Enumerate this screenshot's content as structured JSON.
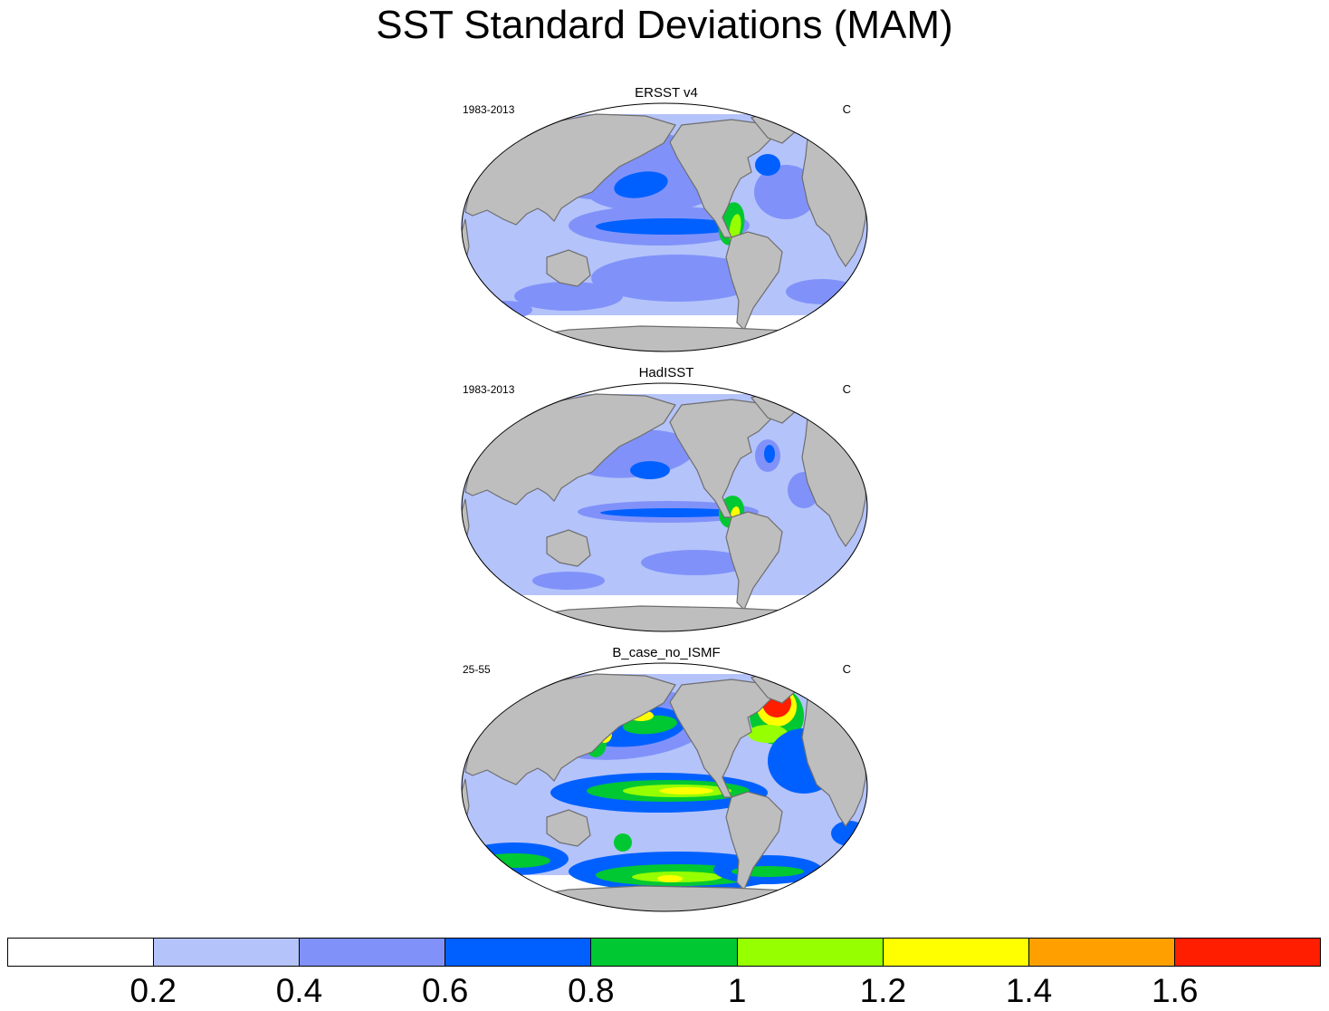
{
  "title": "SST Standard Deviations (MAM)",
  "panels": [
    {
      "title": "ERSST v4",
      "period": "1983-2013",
      "units": "C",
      "variant": "obs"
    },
    {
      "title": "HadISST",
      "period": "1983-2013",
      "units": "C",
      "variant": "obs2"
    },
    {
      "title": "B_case_no_ISMF",
      "period": "25-55",
      "units": "C",
      "variant": "model"
    }
  ],
  "colorbar": {
    "colors": [
      "#ffffff",
      "#b4c3fa",
      "#8092f9",
      "#0060ff",
      "#00c832",
      "#96ff00",
      "#ffff00",
      "#ffa000",
      "#ff1e00"
    ],
    "labels": [
      "0.2",
      "0.4",
      "0.6",
      "0.8",
      "1",
      "1.2",
      "1.4",
      "1.6"
    ]
  },
  "map_colors": {
    "land": "#bebebe",
    "coast": "#6e6e6e",
    "ocean_base": "#b4c3fa"
  }
}
